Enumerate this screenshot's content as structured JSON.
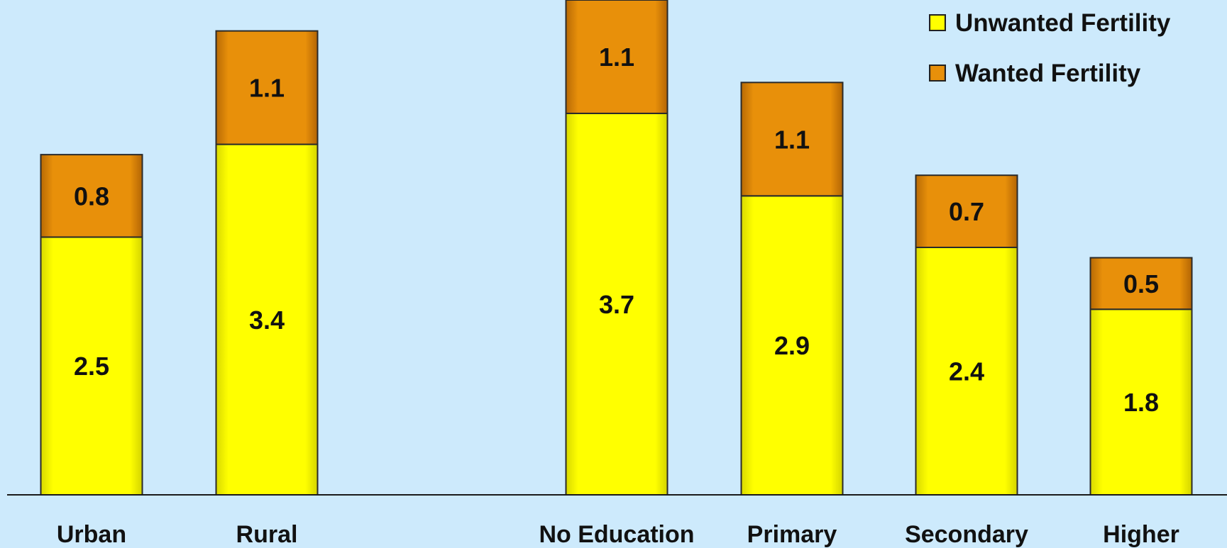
{
  "chart_data": {
    "type": "bar",
    "stacked": true,
    "categories": [
      "Urban",
      "Rural",
      "No Education",
      "Primary",
      "Secondary",
      "Higher"
    ],
    "series": [
      {
        "name": "Unwanted Fertility",
        "color": "#ffff00",
        "values": [
          2.5,
          3.4,
          3.7,
          2.9,
          2.4,
          1.8
        ]
      },
      {
        "name": "Wanted Fertility",
        "color": "#e8900a",
        "values": [
          0.8,
          1.1,
          1.1,
          1.1,
          0.7,
          0.5
        ]
      }
    ],
    "bottom_series": "Unwanted Fertility",
    "legend_position": "top-right",
    "grid": false,
    "ylim": [
      0,
      4.8
    ],
    "title": "",
    "xlabel": "",
    "ylabel": ""
  }
}
